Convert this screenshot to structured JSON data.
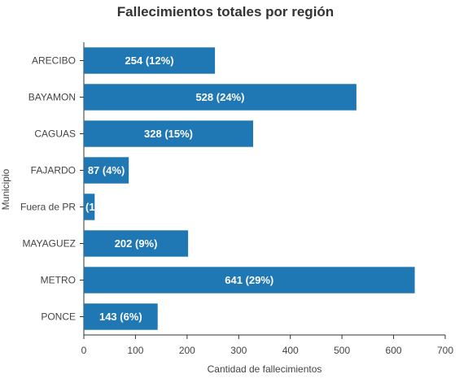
{
  "chart_data": {
    "type": "bar",
    "orientation": "horizontal",
    "title": "Fallecimientos totales por región",
    "xlabel": "Cantidad de fallecimientos",
    "ylabel": "Municipio",
    "categories": [
      "ARECIBO",
      "BAYAMON",
      "CAGUAS",
      "FAJARDO",
      "Fuera de PR",
      "MAYAGUEZ",
      "METRO",
      "PONCE"
    ],
    "category_display": [
      "ARECIBO",
      "BAYAMON",
      "CAGUAS",
      "FAJARDO",
      "Fuera de PR",
      "MAYAGUEZ",
      "METRO",
      "PONCE"
    ],
    "values": [
      254,
      528,
      328,
      87,
      21,
      202,
      641,
      143
    ],
    "data_labels": [
      "254 (12%)",
      "528 (24%)",
      "328 (15%)",
      "87 (4%)",
      "(1",
      "202 (9%)",
      "641 (29%)",
      "143 (6%)"
    ],
    "xlim": [
      0,
      700
    ],
    "xticks": [
      "0",
      "100",
      "200",
      "300",
      "400",
      "500",
      "600",
      "700"
    ],
    "grid": false,
    "bar_color": "#1f77b4"
  }
}
